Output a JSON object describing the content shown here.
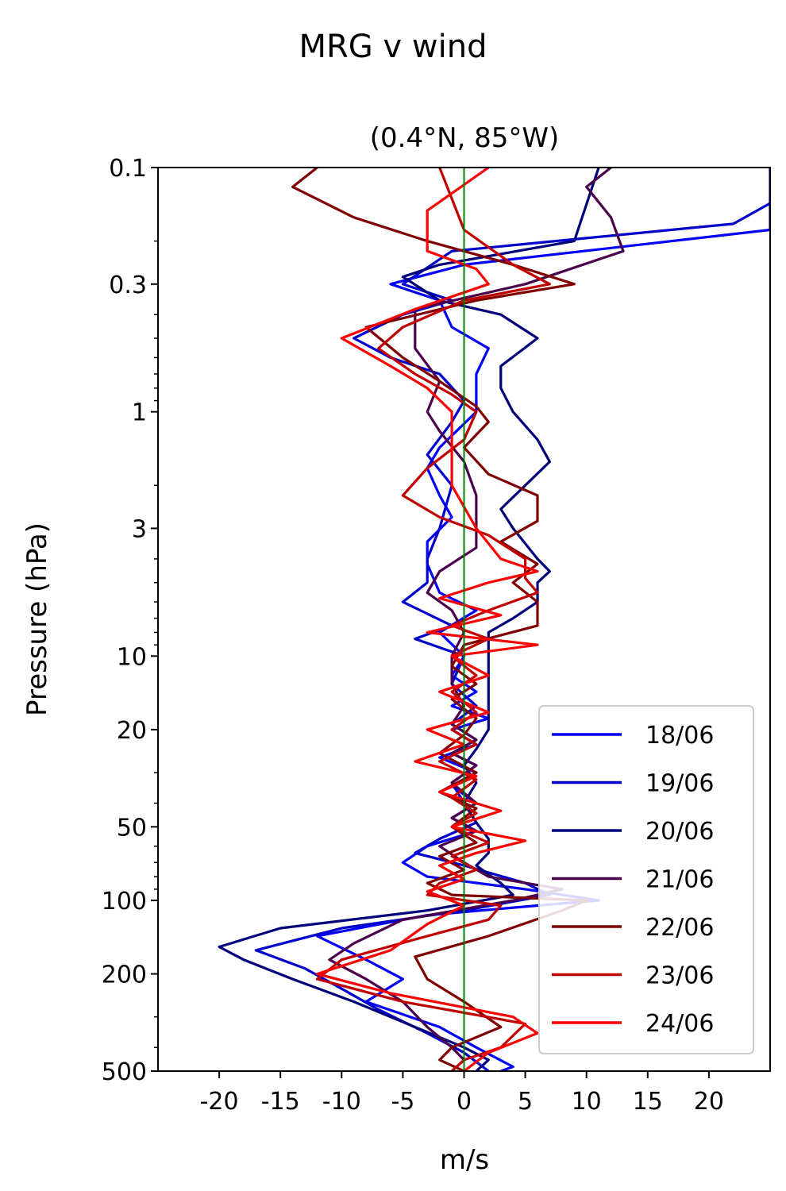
{
  "chart_data": {
    "type": "line",
    "title": "MRG v wind",
    "subtitle": "(0.4°N, 85°W)",
    "xlabel": "m/s",
    "ylabel": "Pressure (hPa)",
    "xlim": [
      -25,
      25
    ],
    "ylim": [
      500,
      0.1
    ],
    "yscale": "log",
    "x_ticks": [
      -20,
      -15,
      -10,
      -5,
      0,
      5,
      10,
      15,
      20
    ],
    "x_tick_labels": [
      "-20",
      "-15",
      "-10",
      "-5",
      "0",
      "5",
      "10",
      "15",
      "20"
    ],
    "y_ticks": [
      0.1,
      0.3,
      1,
      3,
      10,
      20,
      50,
      100,
      200,
      500
    ],
    "y_tick_labels": [
      "0.1",
      "0.3",
      "1",
      "3",
      "10",
      "20",
      "50",
      "100",
      "200",
      "500"
    ],
    "reference_line": {
      "x": 0,
      "color": "#008000"
    },
    "legend_position": "lower-right",
    "series": [
      {
        "name": "18/06",
        "color": "#0000ff",
        "points": [
          [
            25,
            0.1
          ],
          [
            25,
            0.18
          ],
          [
            0,
            0.25
          ],
          [
            -6,
            0.3
          ],
          [
            -2,
            0.35
          ],
          [
            -1,
            0.45
          ],
          [
            2,
            0.55
          ],
          [
            1,
            0.7
          ],
          [
            1,
            1
          ],
          [
            -2,
            1.4
          ],
          [
            -3,
            1.7
          ],
          [
            -2,
            2.2
          ],
          [
            -1,
            2.7
          ],
          [
            -3,
            3.4
          ],
          [
            -3,
            4.2
          ],
          [
            -2,
            5.5
          ],
          [
            1,
            6.5
          ],
          [
            -2,
            8
          ],
          [
            0,
            10
          ],
          [
            -1,
            12
          ],
          [
            1,
            14
          ],
          [
            -1,
            16
          ],
          [
            2,
            18
          ],
          [
            -1,
            20
          ],
          [
            1,
            23
          ],
          [
            -2,
            26
          ],
          [
            1,
            30
          ],
          [
            -1,
            34
          ],
          [
            1,
            40
          ],
          [
            -1,
            46
          ],
          [
            1,
            52
          ],
          [
            -3,
            60
          ],
          [
            -5,
            70
          ],
          [
            -3,
            80
          ],
          [
            5,
            90
          ],
          [
            11,
            100
          ],
          [
            6,
            105
          ],
          [
            -3,
            115
          ],
          [
            -12,
            140
          ],
          [
            -8,
            175
          ],
          [
            -5,
            210
          ],
          [
            -8,
            260
          ],
          [
            -2,
            330
          ],
          [
            1,
            400
          ],
          [
            4,
            480
          ],
          [
            3,
            500
          ]
        ]
      },
      {
        "name": "19/06",
        "color": "#0000cd",
        "points": [
          [
            25,
            0.14
          ],
          [
            22,
            0.17
          ],
          [
            -1,
            0.22
          ],
          [
            -5,
            0.3
          ],
          [
            -1,
            0.35
          ],
          [
            -5,
            0.4
          ],
          [
            -9,
            0.5
          ],
          [
            -6,
            0.6
          ],
          [
            -2,
            0.7
          ],
          [
            0,
            0.9
          ],
          [
            -1,
            1.1
          ],
          [
            -3,
            1.5
          ],
          [
            -1,
            2
          ],
          [
            -2,
            3
          ],
          [
            -3,
            4
          ],
          [
            -3,
            5
          ],
          [
            -5,
            6
          ],
          [
            -1,
            7.5
          ],
          [
            -4,
            8.5
          ],
          [
            0,
            10
          ],
          [
            -1,
            13
          ],
          [
            1,
            16
          ],
          [
            -1,
            19
          ],
          [
            1,
            22
          ],
          [
            -1,
            25
          ],
          [
            1,
            28
          ],
          [
            -1,
            33
          ],
          [
            0,
            40
          ],
          [
            1,
            48
          ],
          [
            -2,
            56
          ],
          [
            -4,
            64
          ],
          [
            0,
            72
          ],
          [
            5,
            85
          ],
          [
            7,
            95
          ],
          [
            0,
            110
          ],
          [
            -10,
            130
          ],
          [
            -17,
            160
          ],
          [
            -13,
            190
          ],
          [
            -10,
            230
          ],
          [
            -7,
            280
          ],
          [
            -3,
            350
          ],
          [
            0,
            420
          ],
          [
            2,
            500
          ]
        ]
      },
      {
        "name": "20/06",
        "color": "#00007b",
        "points": [
          [
            11,
            0.1
          ],
          [
            9,
            0.2
          ],
          [
            -2,
            0.25
          ],
          [
            -5,
            0.28
          ],
          [
            -2,
            0.35
          ],
          [
            3,
            0.4
          ],
          [
            6,
            0.5
          ],
          [
            3,
            0.65
          ],
          [
            3,
            0.8
          ],
          [
            4,
            1
          ],
          [
            6,
            1.3
          ],
          [
            7,
            1.6
          ],
          [
            5,
            2
          ],
          [
            3,
            2.5
          ],
          [
            4,
            3
          ],
          [
            6,
            4
          ],
          [
            7,
            4.5
          ],
          [
            6,
            5
          ],
          [
            6,
            6
          ],
          [
            4,
            7
          ],
          [
            2,
            8
          ],
          [
            2,
            10
          ],
          [
            2,
            13
          ],
          [
            2,
            16
          ],
          [
            2,
            20
          ],
          [
            1,
            24
          ],
          [
            0,
            28
          ],
          [
            1,
            33
          ],
          [
            0,
            40
          ],
          [
            1,
            48
          ],
          [
            2,
            56
          ],
          [
            2,
            64
          ],
          [
            1,
            72
          ],
          [
            3,
            85
          ],
          [
            4,
            95
          ],
          [
            -3,
            110
          ],
          [
            -15,
            130
          ],
          [
            -20,
            155
          ],
          [
            -18,
            175
          ],
          [
            -14,
            210
          ],
          [
            -9,
            260
          ],
          [
            -4,
            330
          ],
          [
            0,
            400
          ],
          [
            2,
            450
          ],
          [
            1,
            500
          ]
        ]
      },
      {
        "name": "21/06",
        "color": "#4b004b",
        "points": [
          [
            12,
            0.1
          ],
          [
            10,
            0.12
          ],
          [
            12,
            0.16
          ],
          [
            13,
            0.22
          ],
          [
            5,
            0.3
          ],
          [
            -4,
            0.38
          ],
          [
            -4,
            0.55
          ],
          [
            -2,
            0.75
          ],
          [
            -3,
            1
          ],
          [
            -2,
            1.2
          ],
          [
            0,
            1.6
          ],
          [
            1,
            2.2
          ],
          [
            1,
            3
          ],
          [
            1,
            3.6
          ],
          [
            -2,
            4.5
          ],
          [
            -3,
            5.5
          ],
          [
            -1,
            6.5
          ],
          [
            0,
            8
          ],
          [
            -1,
            10
          ],
          [
            -1,
            13
          ],
          [
            0,
            16
          ],
          [
            -1,
            19
          ],
          [
            1,
            22
          ],
          [
            -1,
            25
          ],
          [
            1,
            28
          ],
          [
            -1,
            33
          ],
          [
            1,
            40
          ],
          [
            -1,
            46
          ],
          [
            1,
            52
          ],
          [
            -2,
            60
          ],
          [
            0,
            70
          ],
          [
            2,
            80
          ],
          [
            8,
            90
          ],
          [
            4,
            100
          ],
          [
            -5,
            120
          ],
          [
            -9,
            150
          ],
          [
            -11,
            175
          ],
          [
            -8,
            210
          ],
          [
            -5,
            260
          ],
          [
            -3,
            330
          ],
          [
            -1,
            400
          ],
          [
            0,
            450
          ],
          [
            -1,
            500
          ]
        ]
      },
      {
        "name": "22/06",
        "color": "#800000",
        "points": [
          [
            -12,
            0.1
          ],
          [
            -14,
            0.12
          ],
          [
            -9,
            0.16
          ],
          [
            -3,
            0.2
          ],
          [
            4,
            0.25
          ],
          [
            9,
            0.3
          ],
          [
            1,
            0.35
          ],
          [
            -8,
            0.45
          ],
          [
            -5,
            0.6
          ],
          [
            -2,
            0.75
          ],
          [
            1,
            0.95
          ],
          [
            2,
            1.1
          ],
          [
            0,
            1.4
          ],
          [
            2,
            1.8
          ],
          [
            6,
            2.2
          ],
          [
            6,
            2.8
          ],
          [
            3,
            3.4
          ],
          [
            6,
            4.2
          ],
          [
            4,
            5
          ],
          [
            6,
            6
          ],
          [
            6,
            7.5
          ],
          [
            0,
            9
          ],
          [
            -1,
            11
          ],
          [
            1,
            13
          ],
          [
            -1,
            15
          ],
          [
            1,
            18
          ],
          [
            0,
            21
          ],
          [
            -2,
            25
          ],
          [
            1,
            30
          ],
          [
            -2,
            36
          ],
          [
            1,
            42
          ],
          [
            -1,
            50
          ],
          [
            1,
            58
          ],
          [
            -2,
            66
          ],
          [
            0,
            75
          ],
          [
            -3,
            85
          ],
          [
            -1,
            95
          ],
          [
            10,
            100
          ],
          [
            8,
            110
          ],
          [
            2,
            140
          ],
          [
            -4,
            170
          ],
          [
            -3,
            210
          ],
          [
            0,
            260
          ],
          [
            3,
            330
          ],
          [
            -1,
            400
          ],
          [
            -2,
            450
          ],
          [
            0,
            500
          ]
        ]
      },
      {
        "name": "23/06",
        "color": "#c00000",
        "points": [
          [
            -2,
            0.1
          ],
          [
            0,
            0.18
          ],
          [
            4,
            0.25
          ],
          [
            7,
            0.3
          ],
          [
            0,
            0.35
          ],
          [
            -5,
            0.45
          ],
          [
            -7,
            0.55
          ],
          [
            -4,
            0.7
          ],
          [
            -1,
            0.85
          ],
          [
            1,
            1
          ],
          [
            0,
            1.3
          ],
          [
            -3,
            1.7
          ],
          [
            -5,
            2.2
          ],
          [
            -2,
            2.7
          ],
          [
            2,
            3.2
          ],
          [
            5,
            4
          ],
          [
            5,
            4.8
          ],
          [
            6,
            5.5
          ],
          [
            2,
            6.5
          ],
          [
            -1,
            7.5
          ],
          [
            2,
            8.5
          ],
          [
            -1,
            10
          ],
          [
            1,
            12
          ],
          [
            -1,
            14
          ],
          [
            1,
            17
          ],
          [
            -1,
            20
          ],
          [
            1,
            23
          ],
          [
            -2,
            27
          ],
          [
            1,
            32
          ],
          [
            -1,
            38
          ],
          [
            1,
            44
          ],
          [
            -1,
            50
          ],
          [
            2,
            58
          ],
          [
            -1,
            66
          ],
          [
            1,
            75
          ],
          [
            -2,
            85
          ],
          [
            -3,
            95
          ],
          [
            3,
            105
          ],
          [
            2,
            120
          ],
          [
            -3,
            140
          ],
          [
            -10,
            175
          ],
          [
            -12,
            210
          ],
          [
            -5,
            260
          ],
          [
            5,
            320
          ],
          [
            3,
            400
          ],
          [
            0,
            450
          ],
          [
            -1,
            500
          ]
        ]
      },
      {
        "name": "24/06",
        "color": "#ff0000",
        "points": [
          [
            2,
            0.1
          ],
          [
            -3,
            0.15
          ],
          [
            -3,
            0.22
          ],
          [
            1,
            0.26
          ],
          [
            2,
            0.3
          ],
          [
            -4,
            0.38
          ],
          [
            -10,
            0.5
          ],
          [
            -6,
            0.65
          ],
          [
            -3,
            0.8
          ],
          [
            -1,
            1
          ],
          [
            -1,
            1.2
          ],
          [
            -1,
            1.5
          ],
          [
            -1,
            2
          ],
          [
            1,
            3
          ],
          [
            3,
            4
          ],
          [
            6,
            4.5
          ],
          [
            2,
            5
          ],
          [
            -2,
            5.8
          ],
          [
            3,
            6.8
          ],
          [
            -3,
            8
          ],
          [
            6,
            9
          ],
          [
            -1,
            10
          ],
          [
            2,
            12
          ],
          [
            -2,
            14
          ],
          [
            2,
            17
          ],
          [
            -3,
            20
          ],
          [
            0,
            23
          ],
          [
            -4,
            27
          ],
          [
            1,
            31
          ],
          [
            -2,
            36
          ],
          [
            3,
            43
          ],
          [
            -1,
            50
          ],
          [
            5,
            57
          ],
          [
            1,
            64
          ],
          [
            -2,
            72
          ],
          [
            0,
            82
          ],
          [
            -3,
            92
          ],
          [
            0,
            105
          ],
          [
            -3,
            125
          ],
          [
            -6,
            160
          ],
          [
            -12,
            200
          ],
          [
            -6,
            240
          ],
          [
            4,
            300
          ],
          [
            6,
            350
          ],
          [
            2,
            420
          ],
          [
            0,
            500
          ]
        ]
      }
    ]
  }
}
